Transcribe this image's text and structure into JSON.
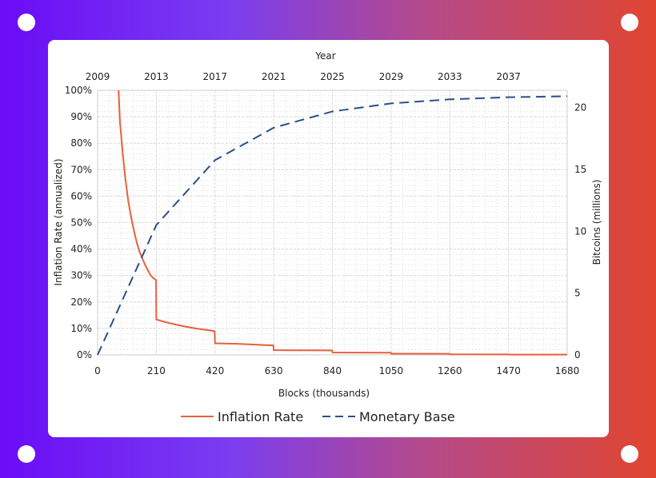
{
  "background": {
    "gradient": [
      "#6a0cf6",
      "#b54a8a",
      "#e0452f"
    ]
  },
  "chart_data": {
    "type": "line",
    "top_axis": {
      "label": "Year",
      "ticks": [
        "2009",
        "2013",
        "2017",
        "2021",
        "2025",
        "2029",
        "2033",
        "2037"
      ]
    },
    "x_axis": {
      "label": "Blocks (thousands)",
      "ticks": [
        0,
        210,
        420,
        630,
        840,
        1050,
        1260,
        1470,
        1680
      ],
      "range": [
        0,
        1680
      ]
    },
    "y_left": {
      "label": "Inflation Rate (annualized)",
      "ticks": [
        "0%",
        "10%",
        "20%",
        "30%",
        "40%",
        "50%",
        "60%",
        "70%",
        "80%",
        "90%",
        "100%"
      ],
      "range": [
        0,
        100
      ]
    },
    "y_right": {
      "label": "Bitcoins (millions)",
      "ticks": [
        0,
        5,
        10,
        15,
        20
      ],
      "range": [
        0,
        21.4
      ]
    },
    "grid": true,
    "legend": {
      "position": "bottom"
    },
    "series": [
      {
        "name": "Inflation Rate",
        "axis": "left",
        "color": "#e8603a",
        "style": "solid",
        "points": [
          [
            75,
            100
          ],
          [
            80,
            88
          ],
          [
            90,
            76
          ],
          [
            100,
            66
          ],
          [
            110,
            58
          ],
          [
            120,
            52
          ],
          [
            130,
            47
          ],
          [
            140,
            42.5
          ],
          [
            150,
            39
          ],
          [
            160,
            36.5
          ],
          [
            170,
            34
          ],
          [
            180,
            32
          ],
          [
            190,
            30
          ],
          [
            200,
            29
          ],
          [
            209,
            28.3
          ],
          [
            210,
            13.4
          ],
          [
            250,
            12.2
          ],
          [
            300,
            11.0
          ],
          [
            350,
            10.0
          ],
          [
            400,
            9.3
          ],
          [
            419,
            8.9
          ],
          [
            420,
            4.4
          ],
          [
            500,
            4.2
          ],
          [
            600,
            3.7
          ],
          [
            629,
            3.6
          ],
          [
            630,
            1.8
          ],
          [
            700,
            1.75
          ],
          [
            839,
            1.7
          ],
          [
            840,
            0.9
          ],
          [
            1049,
            0.85
          ],
          [
            1050,
            0.45
          ],
          [
            1259,
            0.42
          ],
          [
            1260,
            0.22
          ],
          [
            1469,
            0.2
          ],
          [
            1470,
            0.11
          ],
          [
            1680,
            0.1
          ]
        ]
      },
      {
        "name": "Monetary Base",
        "axis": "right",
        "color": "#2b4f8a",
        "style": "dashed",
        "points": [
          [
            0,
            0
          ],
          [
            210,
            10.5
          ],
          [
            420,
            15.75
          ],
          [
            630,
            18.375
          ],
          [
            840,
            19.69
          ],
          [
            1050,
            20.34
          ],
          [
            1260,
            20.67
          ],
          [
            1470,
            20.84
          ],
          [
            1680,
            20.92
          ]
        ]
      }
    ]
  }
}
